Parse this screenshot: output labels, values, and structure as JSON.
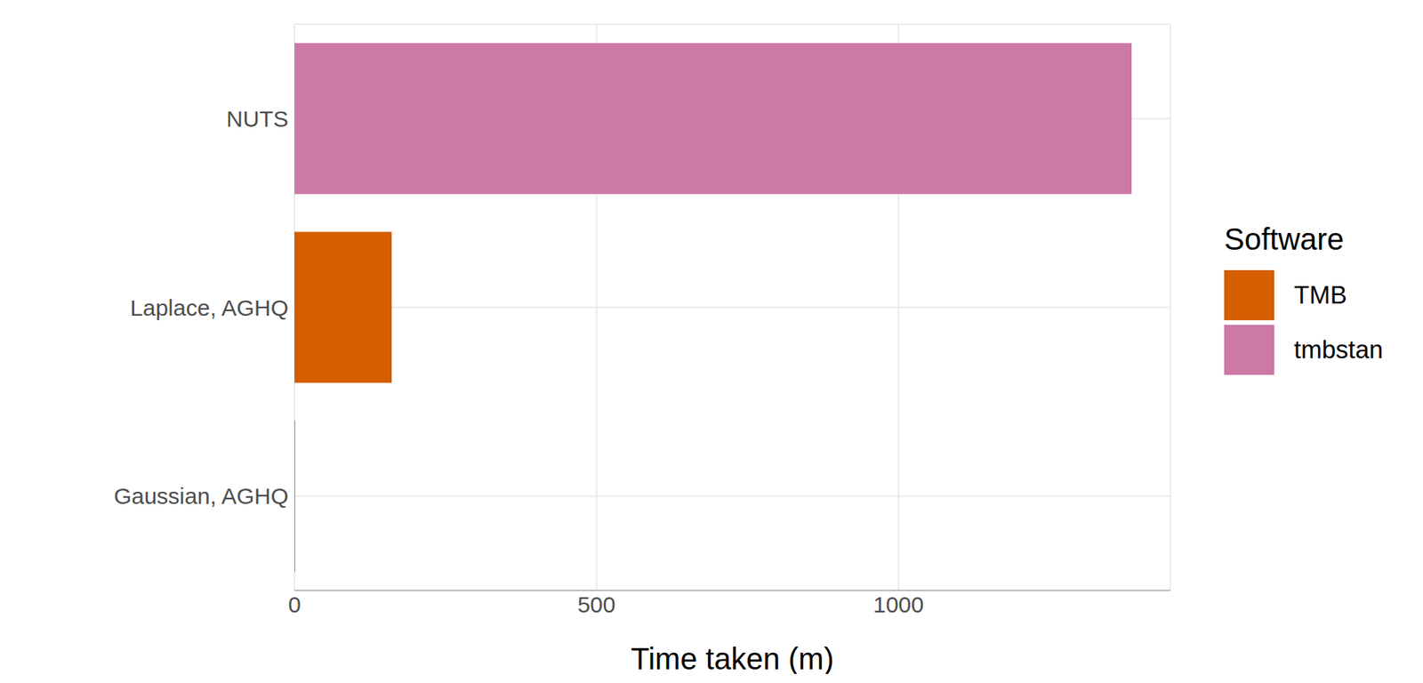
{
  "chart_data": {
    "type": "bar",
    "orientation": "horizontal",
    "stacked": true,
    "grid": true,
    "xlabel": "Time taken (m)",
    "legend_title": "Software",
    "legend": "right",
    "categories": [
      "NUTS",
      "Laplace, AGHQ",
      "Gaussian, AGHQ"
    ],
    "series": [
      {
        "name": "TMB",
        "color": "#D55E00",
        "values": [
          null,
          161,
          1
        ]
      },
      {
        "name": "tmbstan",
        "color": "#CC79A7",
        "values": [
          1386,
          null,
          null
        ]
      }
    ],
    "xlim": [
      0,
      1450
    ],
    "xticks": [
      0,
      500,
      1000
    ]
  }
}
